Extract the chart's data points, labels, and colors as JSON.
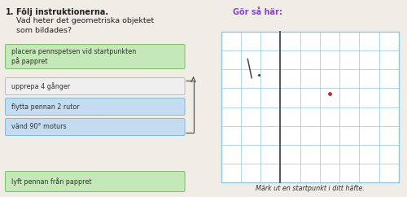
{
  "title_num": "1.",
  "title_text": "Följ instruktionerna.",
  "subtitle_text": "Vad heter det geometriska objektet\nsom bildades?",
  "boxes": [
    {
      "text": "placera pennspetsen vid startpunkten\npå pappret",
      "type": "green"
    },
    {
      "text": "upprepa 4 gånger",
      "type": "white"
    },
    {
      "text": "flytta pennan 2 rutor",
      "type": "blue"
    },
    {
      "text": "vänd 90° moturs",
      "type": "blue"
    },
    {
      "text": "lyft pennan från pappret",
      "type": "green"
    }
  ],
  "right_title": "Gör så här:",
  "right_bottom_text": "Märk ut en startpunkt i ditt häfte.",
  "bg_color": "#f0ede6",
  "grid_color": "#90c8e0",
  "grid_thick_color": "#555555",
  "grid_cols": 9,
  "grid_rows": 8,
  "box_colors": {
    "green": "#c5e8b8",
    "white": "#efefef",
    "blue": "#c5dcf0"
  },
  "box_edge_colors": {
    "green": "#7fbb6a",
    "white": "#bbbbbb",
    "blue": "#7fbbdb"
  },
  "title_color": "#222222",
  "right_title_color": "#8844cc",
  "bottom_text_color": "#333333"
}
